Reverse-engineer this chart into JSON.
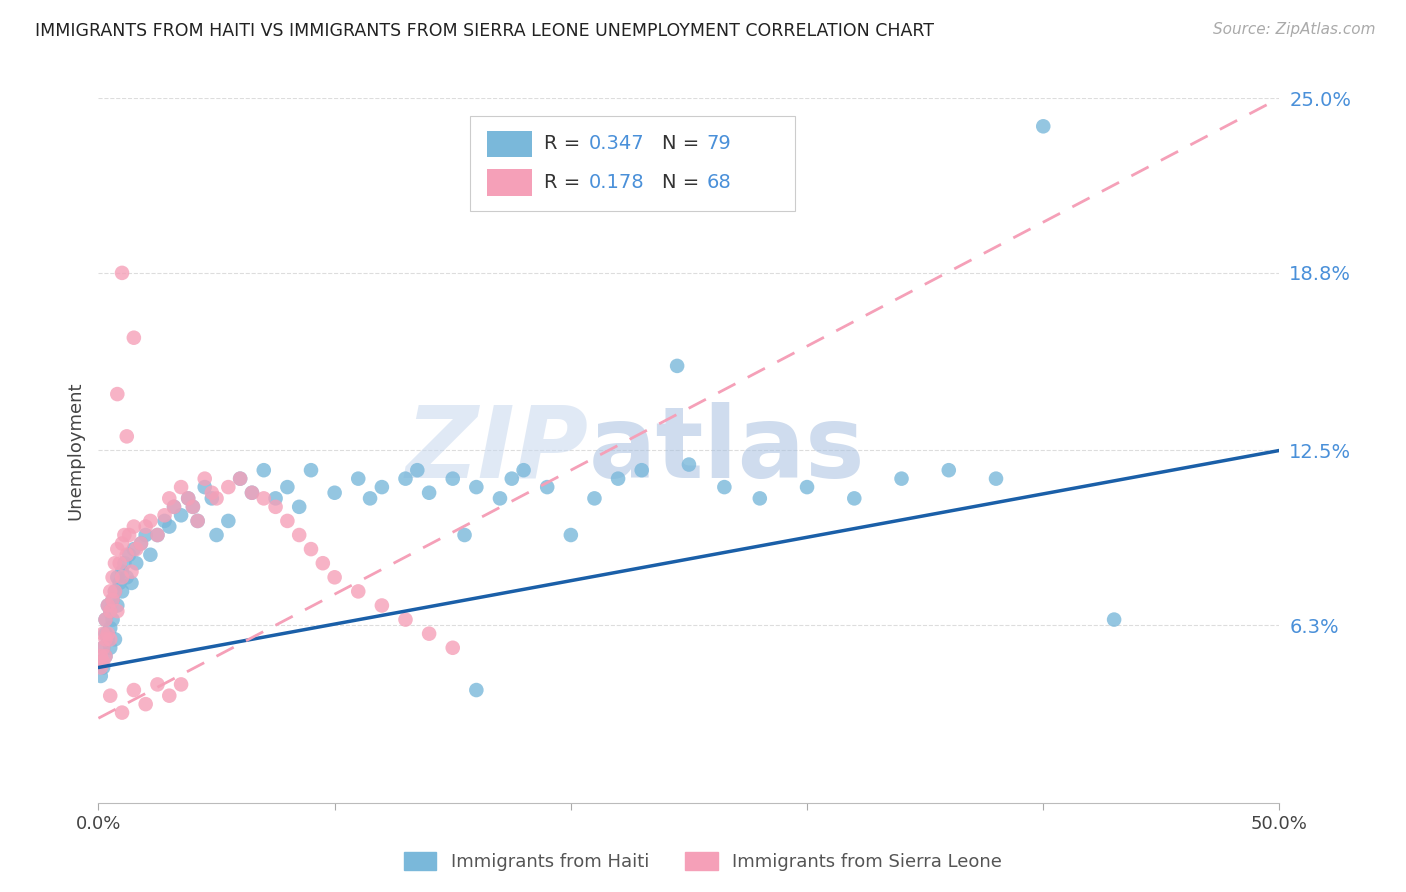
{
  "title": "IMMIGRANTS FROM HAITI VS IMMIGRANTS FROM SIERRA LEONE UNEMPLOYMENT CORRELATION CHART",
  "source": "Source: ZipAtlas.com",
  "ylabel": "Unemployment",
  "xlim": [
    0.0,
    0.5
  ],
  "ylim": [
    0.0,
    0.25
  ],
  "ytick_vals": [
    0.063,
    0.125,
    0.188,
    0.25
  ],
  "ytick_labels": [
    "6.3%",
    "12.5%",
    "18.8%",
    "25.0%"
  ],
  "xtick_vals": [
    0.0,
    0.1,
    0.2,
    0.3,
    0.4,
    0.5
  ],
  "xtick_labels": [
    "0.0%",
    "",
    "",
    "",
    "",
    "50.0%"
  ],
  "haiti_color": "#7ab8da",
  "sierra_leone_color": "#f5a0b8",
  "haiti_line_color": "#1a5fa8",
  "sierra_line_color": "#f5a0b8",
  "haiti_R": 0.347,
  "haiti_N": 79,
  "sierra_leone_R": 0.178,
  "sierra_leone_N": 68,
  "haiti_line_y0": 0.048,
  "haiti_line_y1": 0.125,
  "sierra_line_y0": 0.03,
  "sierra_line_y1": 0.25,
  "legend_label_haiti": "Immigrants from Haiti",
  "legend_label_sierra": "Immigrants from Sierra Leone",
  "watermark_zip": "ZIP",
  "watermark_atlas": "atlas",
  "background_color": "#ffffff",
  "grid_color": "#dddddd",
  "title_color": "#222222",
  "source_color": "#aaaaaa",
  "right_tick_color": "#4a90d9",
  "legend_text_color": "#333333",
  "bottom_legend_text_color": "#555555"
}
